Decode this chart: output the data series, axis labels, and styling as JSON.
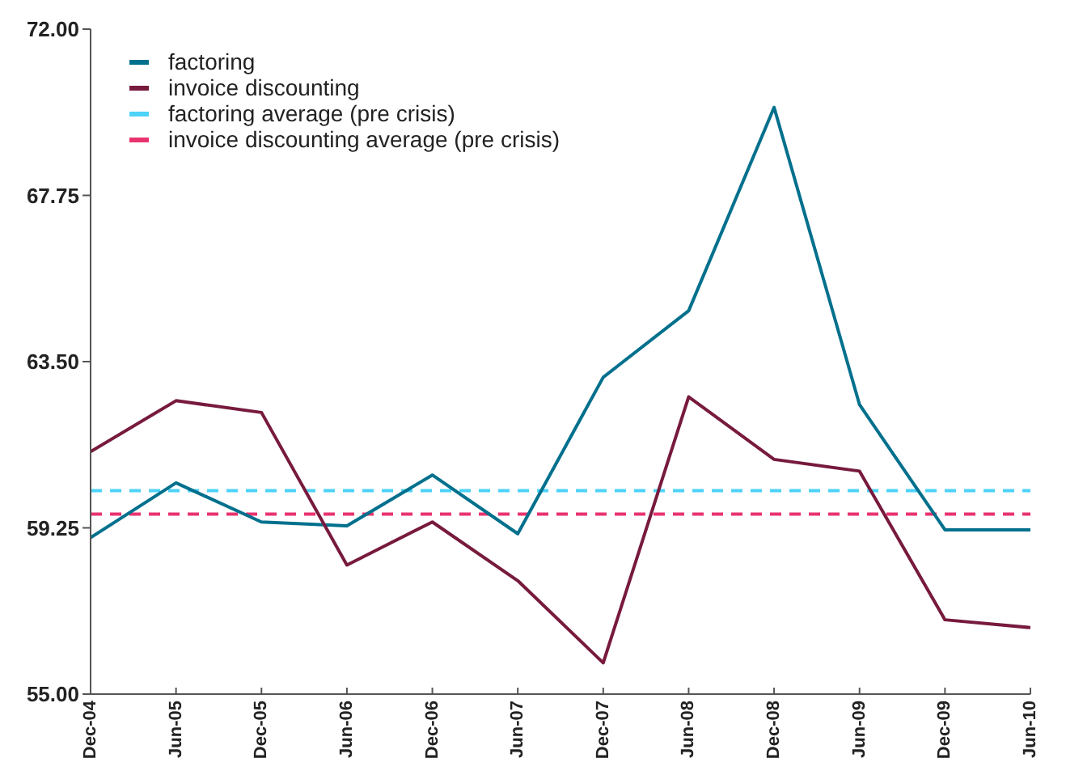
{
  "chart_data": {
    "type": "line",
    "categories": [
      "Dec-04",
      "Jun-05",
      "Dec-05",
      "Jun-06",
      "Dec-06",
      "Jun-07",
      "Dec-07",
      "Jun-08",
      "Dec-08",
      "Jun-09",
      "Dec-09",
      "Jun-10"
    ],
    "series": [
      {
        "name": "factoring",
        "color": "#00708d",
        "values": [
          59.0,
          60.4,
          59.4,
          59.3,
          60.6,
          59.1,
          63.1,
          64.8,
          70.0,
          62.4,
          59.2,
          59.2
        ]
      },
      {
        "name": "invoice discounting",
        "color": "#771a3d",
        "values": [
          61.2,
          62.5,
          62.2,
          58.3,
          59.4,
          57.9,
          55.8,
          62.6,
          61.0,
          60.7,
          56.9,
          56.7
        ]
      }
    ],
    "ylim": [
      55,
      72
    ],
    "yticks": [
      {
        "value": 55,
        "label": "55.00"
      },
      59.25,
      {
        "value": 63.5,
        "label": "63.50"
      },
      {
        "value": 67.75,
        "label": "67.75"
      },
      {
        "value": 72,
        "label": "72.00"
      }
    ],
    "ref_lines": [
      {
        "axis": "y",
        "value": 60.2,
        "label": "factoring average (pre crisis)",
        "color": "#4dd2f8",
        "line_style": "dashed"
      },
      {
        "axis": "y",
        "value": 59.6,
        "label": "invoice discounting average (pre crisis)",
        "color": "#e8336e",
        "line_style": "dashed"
      }
    ],
    "legend": "top left",
    "line_style": "solid"
  }
}
